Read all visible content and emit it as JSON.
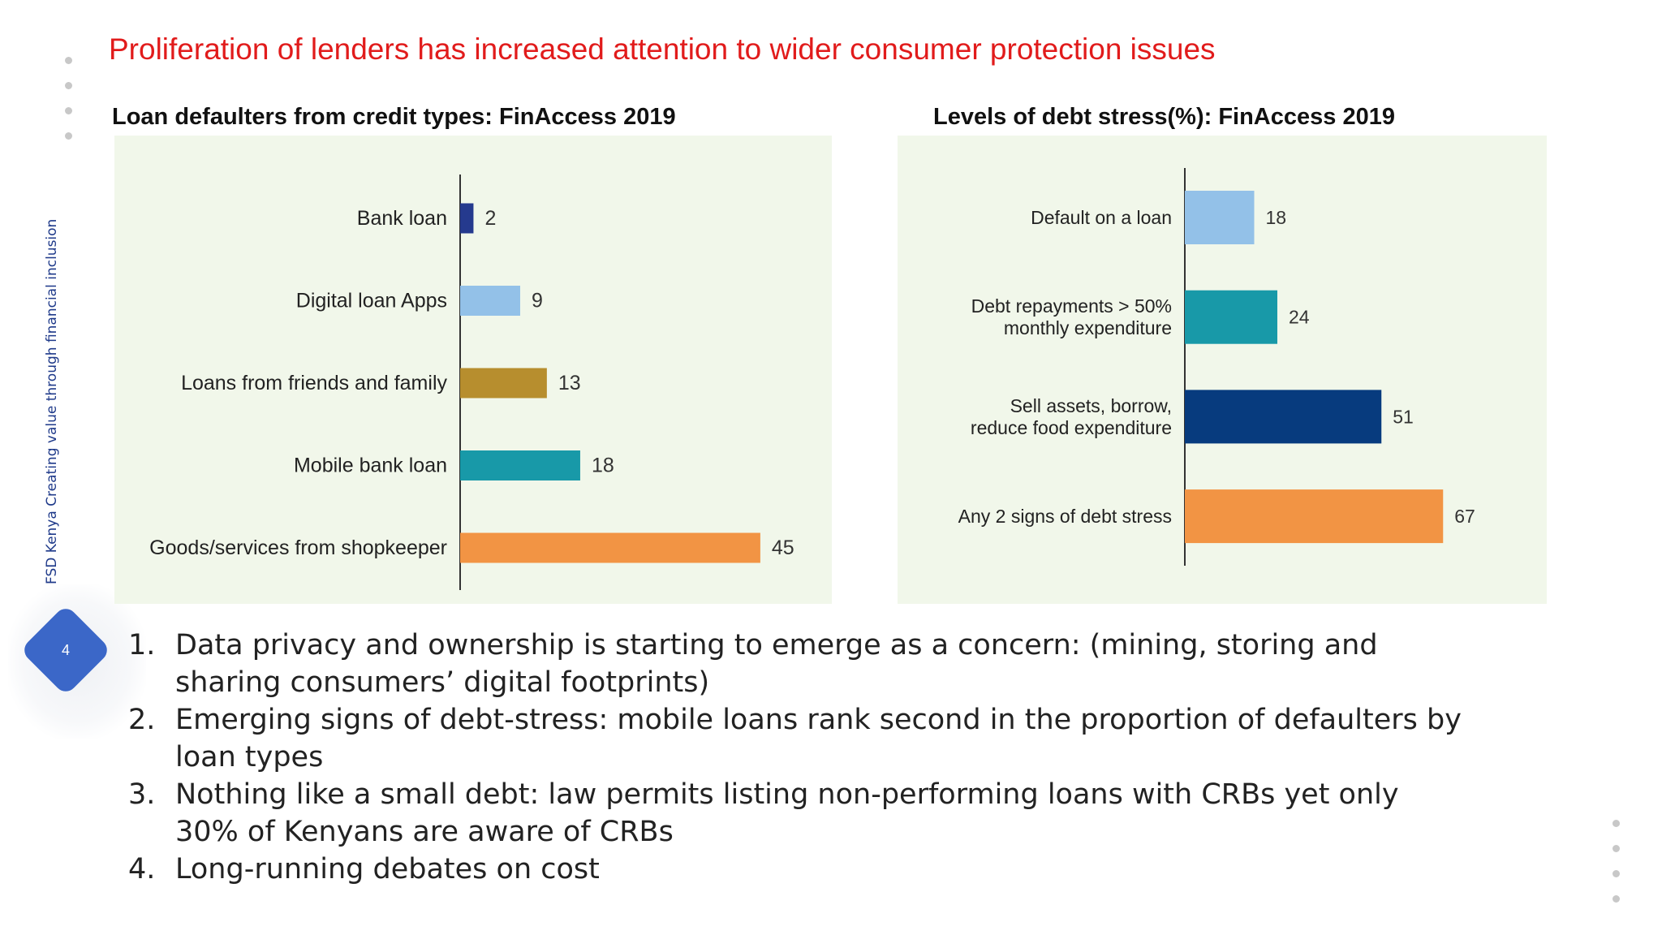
{
  "slide": {
    "title": "Proliferation of lenders has increased attention to wider consumer protection issues",
    "side_text": "FSD Kenya Creating value through financial inclusion",
    "page_number": "4",
    "badge_color": "#3b67c8",
    "title_color": "#e11b1b"
  },
  "bullets": [
    {
      "num": "1.",
      "text": "Data privacy and ownership is starting to emerge as a concern: (mining, storing and sharing consumers’ digital footprints)"
    },
    {
      "num": "2.",
      "text": "Emerging signs of debt-stress: mobile loans rank second in the proportion of defaulters by loan types"
    },
    {
      "num": "3.",
      "text": "Nothing like a small debt: law permits listing non-performing loans with CRBs yet only 30% of Kenyans are aware of CRBs"
    },
    {
      "num": "4.",
      "text": "Long-running debates on cost"
    }
  ],
  "chart_data": [
    {
      "type": "bar",
      "orientation": "horizontal",
      "title": "Loan defaulters from credit types: FinAccess 2019",
      "categories": [
        "Bank loan",
        "Digital loan Apps",
        "Loans from friends and family",
        "Mobile bank loan",
        "Goods/services from shopkeeper"
      ],
      "values": [
        2,
        9,
        13,
        18,
        45
      ],
      "colors": [
        "#253a8e",
        "#93c1e8",
        "#b78e2e",
        "#1899a8",
        "#f29444"
      ],
      "xlim": [
        0,
        50
      ],
      "grid": false,
      "legend": "none"
    },
    {
      "type": "bar",
      "orientation": "horizontal",
      "title": "Levels of debt stress(%): FinAccess 2019",
      "categories": [
        [
          "Default on a loan"
        ],
        [
          "Debt repayments > 50%",
          "monthly expenditure"
        ],
        [
          "Sell assets, borrow,",
          "reduce food expenditure"
        ],
        [
          "Any 2 signs of debt stress"
        ]
      ],
      "values": [
        18,
        24,
        51,
        67
      ],
      "colors": [
        "#93c1e8",
        "#1899a8",
        "#073b7e",
        "#f29444"
      ],
      "xlim": [
        0,
        80
      ],
      "grid": false,
      "legend": "none"
    }
  ]
}
